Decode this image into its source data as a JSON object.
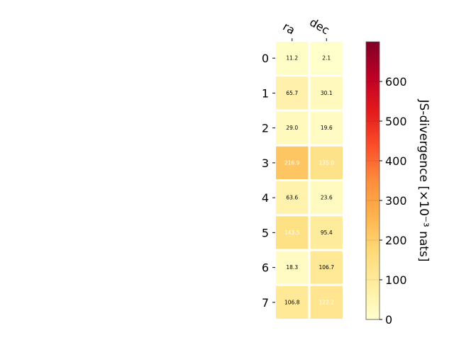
{
  "chart_data": {
    "type": "heatmap",
    "columns": [
      "ra",
      "dec"
    ],
    "rows": [
      "0",
      "1",
      "2",
      "3",
      "4",
      "5",
      "6",
      "7"
    ],
    "values": [
      [
        11.2,
        2.1
      ],
      [
        65.7,
        30.1
      ],
      [
        29.0,
        19.6
      ],
      [
        216.9,
        135.0
      ],
      [
        63.6,
        23.6
      ],
      [
        143.5,
        95.4
      ],
      [
        18.3,
        106.7
      ],
      [
        106.8,
        122.2
      ]
    ],
    "cell_labels": [
      [
        "11.2",
        "2.1"
      ],
      [
        "65.7",
        "30.1"
      ],
      [
        "29.0",
        "19.6"
      ],
      [
        "216.9",
        "135.0"
      ],
      [
        "63.6",
        "23.6"
      ],
      [
        "143.5",
        "95.4"
      ],
      [
        "18.3",
        "106.7"
      ],
      [
        "106.8",
        "122.2"
      ]
    ],
    "colorbar": {
      "label": "JS-divergence [×10⁻³ nats]",
      "ticks": [
        "0",
        "100",
        "200",
        "300",
        "400",
        "500",
        "600"
      ],
      "range": [
        0,
        700
      ],
      "colormap": "YlOrRd"
    },
    "label_colors": {
      "dark": "#000000",
      "light": "#ffffff"
    },
    "grid": "white cell separators"
  }
}
